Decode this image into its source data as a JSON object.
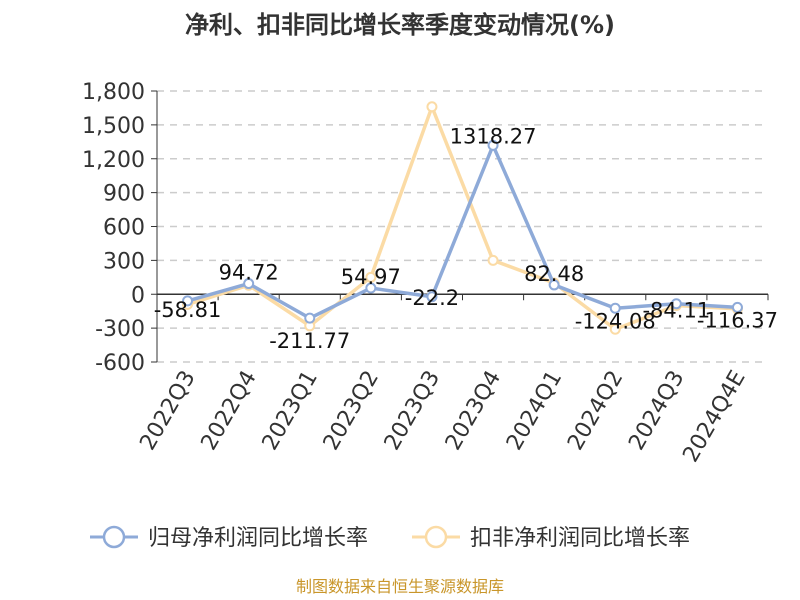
{
  "chart_data": {
    "type": "line",
    "title": "净利、扣非同比增长率季度变动情况(%)",
    "categories": [
      "2022Q3",
      "2022Q4",
      "2023Q1",
      "2023Q2",
      "2023Q3",
      "2023Q4",
      "2024Q1",
      "2024Q2",
      "2024Q3",
      "2024Q4E"
    ],
    "ylim": [
      -600,
      1800
    ],
    "yticks": [
      -600,
      -300,
      0,
      300,
      600,
      900,
      1200,
      1500,
      1800
    ],
    "ytick_labels": [
      "-600",
      "-300",
      "0",
      "300",
      "600",
      "900",
      "1,200",
      "1,500",
      "1,800"
    ],
    "grid": true,
    "legend_position": "bottom",
    "series": [
      {
        "name": "归母净利润同比增长率",
        "color": "#8eaad8",
        "values": [
          -58.81,
          94.72,
          -211.77,
          54.97,
          -22.2,
          1318.27,
          82.48,
          -124.08,
          -84.11,
          -116.37
        ],
        "labels": [
          "-58.81",
          "94.72",
          "-211.77",
          "54.97",
          "-22.2",
          "1318.27",
          "82.48",
          "-124.08",
          "-84.11",
          "-116.37"
        ]
      },
      {
        "name": "扣非净利润同比增长率",
        "color": "#fbdba5",
        "values": [
          -90,
          80,
          -280,
          150,
          1660,
          300,
          100,
          -310,
          -100,
          -130
        ]
      }
    ],
    "source": "制图数据来自恒生聚源数据库"
  }
}
